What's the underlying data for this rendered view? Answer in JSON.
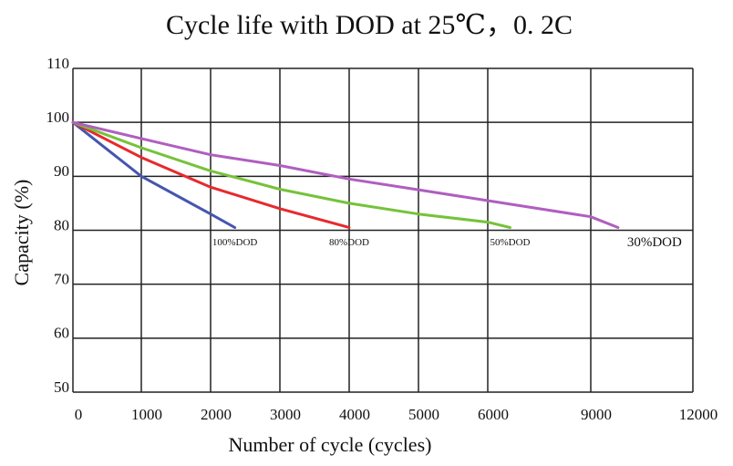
{
  "chart_data": {
    "type": "line",
    "title": "Cycle life with DOD at 25℃，0. 2C",
    "x_label": "Number of cycle (cycles)",
    "y_label": "Capacity (%)",
    "ylim": [
      50,
      110
    ],
    "yticks": [
      50,
      60,
      70,
      80,
      90,
      100,
      110
    ],
    "xlim": [
      0,
      12000
    ],
    "xticks": [
      0,
      1000,
      2000,
      3000,
      4000,
      5000,
      6000,
      9000,
      12000
    ],
    "grid": true,
    "series": [
      {
        "name": "100%DOD",
        "color": "#4556b0",
        "x": [
          0,
          500,
          1000,
          1500,
          2000,
          2350
        ],
        "values": [
          100,
          95,
          90,
          86.5,
          83,
          80.5
        ]
      },
      {
        "name": "80%DOD",
        "color": "#e62a2e",
        "x": [
          0,
          1000,
          2000,
          3000,
          4000
        ],
        "values": [
          100,
          93.5,
          88,
          84,
          80.5
        ]
      },
      {
        "name": "50%DOD",
        "color": "#76c23a",
        "x": [
          0,
          1000,
          2000,
          3000,
          4000,
          5000,
          6000,
          6650
        ],
        "values": [
          100,
          95.3,
          91,
          87.6,
          85,
          83,
          81.5,
          80.5
        ]
      },
      {
        "name": "30%DOD",
        "color": "#b05ec0",
        "x": [
          0,
          1000,
          2000,
          3000,
          4000,
          5000,
          6000,
          9000,
          9800
        ],
        "values": [
          100,
          97,
          94,
          92,
          89.5,
          87.5,
          85.5,
          82.5,
          80.5
        ]
      }
    ]
  }
}
